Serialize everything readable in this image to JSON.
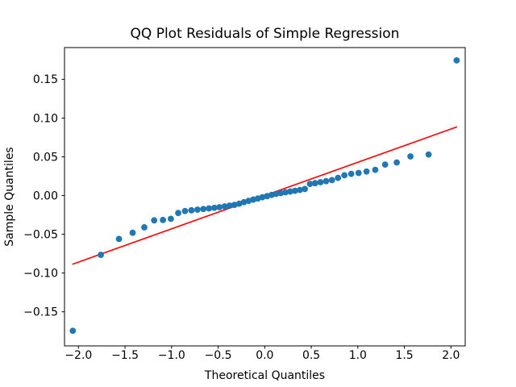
{
  "figure": {
    "background": "#ffffff",
    "spine_color": "#000000"
  },
  "chart_data": {
    "type": "scatter",
    "title": "QQ Plot Residuals of Simple Regression",
    "xlabel": "Theoretical Quantiles",
    "ylabel": "Sample Quantiles",
    "xlim": [
      -2.15,
      2.153
    ],
    "ylim": [
      -0.194,
      0.191
    ],
    "grid": false,
    "legend_position": "none",
    "xticks": {
      "values": [
        -2.0,
        -1.5,
        -1.0,
        -0.5,
        0.0,
        0.5,
        1.0,
        1.5,
        2.0
      ],
      "labels": [
        "−2.0",
        "−1.5",
        "−1.0",
        "−0.5",
        "0.0",
        "0.5",
        "1.0",
        "1.5",
        "2.0"
      ]
    },
    "yticks": {
      "values": [
        -0.15,
        -0.1,
        -0.05,
        0.0,
        0.05,
        0.1,
        0.15
      ],
      "labels": [
        "−0.15",
        "−0.10",
        "−0.05",
        "0.00",
        "0.05",
        "0.10",
        "0.15"
      ]
    },
    "series": [
      {
        "name": "sample-vs-theoretical-quantiles",
        "type": "scatter",
        "color": "#1f77b4",
        "points": [
          [
            -2.061,
            -0.1745
          ],
          [
            -1.76,
            -0.0765
          ],
          [
            -1.565,
            -0.056
          ],
          [
            -1.418,
            -0.048
          ],
          [
            -1.293,
            -0.041
          ],
          [
            -1.187,
            -0.032
          ],
          [
            -1.093,
            -0.0315
          ],
          [
            -1.008,
            -0.03
          ],
          [
            -0.929,
            -0.0225
          ],
          [
            -0.856,
            -0.02
          ],
          [
            -0.787,
            -0.019
          ],
          [
            -0.722,
            -0.0182
          ],
          [
            -0.659,
            -0.0174
          ],
          [
            -0.599,
            -0.0166
          ],
          [
            -0.541,
            -0.0158
          ],
          [
            -0.486,
            -0.015
          ],
          [
            -0.431,
            -0.014
          ],
          [
            -0.377,
            -0.013
          ],
          [
            -0.325,
            -0.012
          ],
          [
            -0.274,
            -0.0105
          ],
          [
            -0.223,
            -0.0085
          ],
          [
            -0.173,
            -0.0068
          ],
          [
            -0.123,
            -0.0052
          ],
          [
            -0.074,
            -0.0038
          ],
          [
            -0.025,
            -0.0022
          ],
          [
            0.025,
            -0.0008
          ],
          [
            0.074,
            0.0008
          ],
          [
            0.123,
            0.0022
          ],
          [
            0.173,
            0.0032
          ],
          [
            0.223,
            0.0042
          ],
          [
            0.274,
            0.0052
          ],
          [
            0.325,
            0.0062
          ],
          [
            0.377,
            0.0072
          ],
          [
            0.431,
            0.0085
          ],
          [
            0.486,
            0.015
          ],
          [
            0.541,
            0.016
          ],
          [
            0.599,
            0.0172
          ],
          [
            0.659,
            0.0186
          ],
          [
            0.722,
            0.02
          ],
          [
            0.787,
            0.0228
          ],
          [
            0.856,
            0.0262
          ],
          [
            0.929,
            0.028
          ],
          [
            1.008,
            0.0292
          ],
          [
            1.093,
            0.031
          ],
          [
            1.187,
            0.0332
          ],
          [
            1.293,
            0.04
          ],
          [
            1.418,
            0.0427
          ],
          [
            1.565,
            0.0505
          ],
          [
            1.76,
            0.053
          ],
          [
            2.061,
            0.1745
          ]
        ]
      },
      {
        "name": "fit-line",
        "type": "line",
        "color": "#ff0000",
        "points": [
          [
            -2.061,
            -0.0885
          ],
          [
            2.061,
            0.0885
          ]
        ]
      }
    ]
  }
}
